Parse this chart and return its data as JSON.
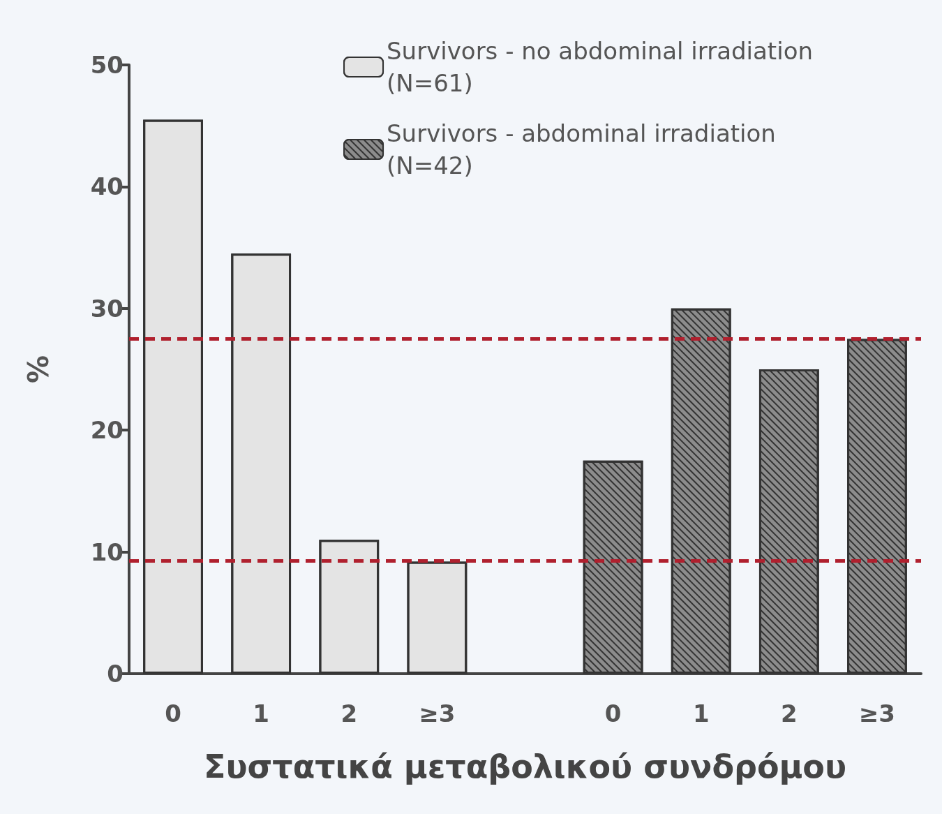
{
  "chart_data": {
    "type": "bar",
    "xlabel": "Συστατικά μεταβολικού συνδρόμου",
    "ylabel": "%",
    "categories": [
      "0",
      "1",
      "2",
      "≥3",
      null,
      "0",
      "1",
      "2",
      "≥3"
    ],
    "series": [
      {
        "name": "Survivors - no abdominal irradiation (N=61)",
        "color": "#e4e4e4",
        "values": [
          45.5,
          34.5,
          11.0,
          9.2,
          null,
          null,
          null,
          null,
          null
        ]
      },
      {
        "name": "Survivors - abdominal irradiation (N=42)",
        "color": "#8c8c8c",
        "values": [
          null,
          null,
          null,
          null,
          null,
          17.5,
          30.0,
          25.0,
          27.5
        ]
      }
    ],
    "ylim": [
      0,
      50
    ],
    "yticks": [
      0,
      10,
      20,
      30,
      40,
      50
    ],
    "grid": false,
    "legend": "top right",
    "ref_lines": [
      {
        "axis": "y",
        "value": 27.5,
        "color": "#b0202e",
        "line_style": "dashed"
      },
      {
        "axis": "y",
        "value": 9.3,
        "color": "#b0202e",
        "line_style": "dashed"
      }
    ]
  }
}
